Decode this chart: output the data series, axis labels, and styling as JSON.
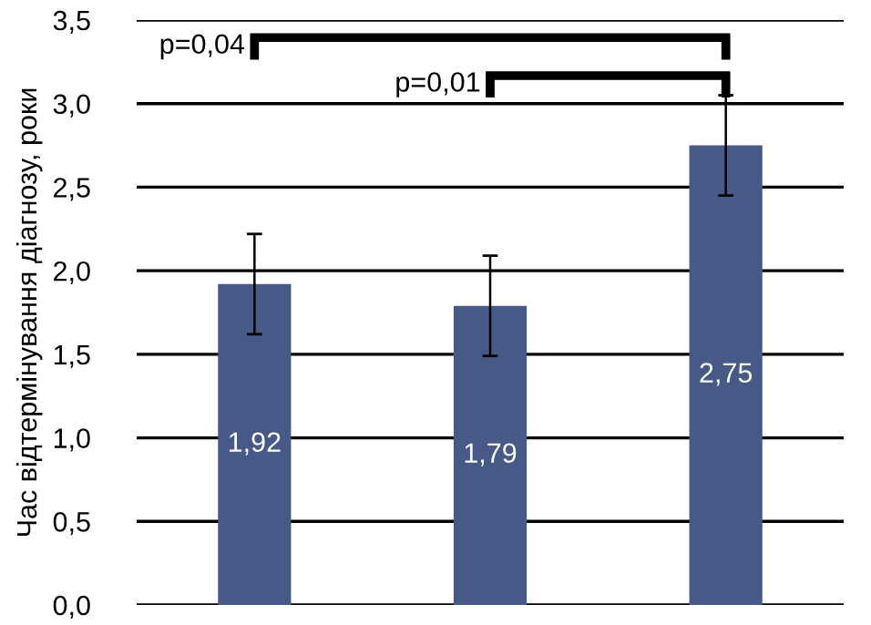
{
  "chart_data": {
    "type": "bar",
    "ylabel": "Час відтермінування діагнозу, роки",
    "categories": [
      null,
      null,
      null
    ],
    "values": [
      1.92,
      1.79,
      2.75
    ],
    "errors": [
      0.3,
      0.3,
      0.3
    ],
    "value_labels": [
      "1,92",
      "1,79",
      "2,75"
    ],
    "color": "#475a87",
    "ylim": [
      0,
      3.5
    ],
    "yticks": [
      {
        "value": 0,
        "label": "0,0"
      },
      {
        "value": 0.5,
        "label": "0,5"
      },
      {
        "value": 1,
        "label": "1,0"
      },
      {
        "value": 1.5,
        "label": "1,5"
      },
      {
        "value": 2,
        "label": "2,0"
      },
      {
        "value": 2.5,
        "label": "2,5"
      },
      {
        "value": 3,
        "label": "3,0"
      },
      {
        "value": 3.5,
        "label": "3,5"
      }
    ],
    "grid": "y",
    "annotations": [
      "p=0,04",
      "p=0,01"
    ]
  }
}
